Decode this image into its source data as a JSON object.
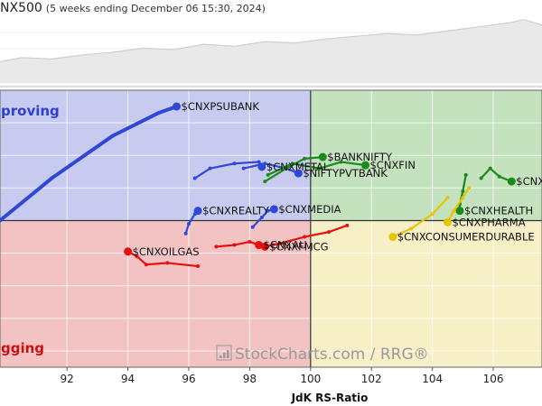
{
  "header": {
    "title": "NX500",
    "subtitle": "(5 weeks ending December 06 15:30, 2024)"
  },
  "watermark": "StockCharts.com / RRG®",
  "quadrants": {
    "improving": {
      "label": "proving",
      "color": "#c8cbf0",
      "text_color": "#2f3fcf"
    },
    "leading": {
      "label": "",
      "color": "#c3e2bd",
      "text_color": "#1f7a1f"
    },
    "lagging": {
      "label": "gging",
      "color": "#f3c3c3",
      "text_color": "#d01010"
    },
    "weakening": {
      "label": "",
      "color": "#f7efc6",
      "text_color": "#b89a00"
    }
  },
  "chart_data": {
    "type": "scatter",
    "title": "",
    "xlabel": "JdK RS-Ratio",
    "ylabel": "",
    "xlim": [
      89.8,
      107.6
    ],
    "ylim": [
      95.5,
      104.0
    ],
    "center": [
      100,
      100
    ],
    "x_ticks": [
      92,
      94,
      96,
      98,
      100,
      102,
      104,
      106
    ],
    "grid": true,
    "benchmark_line": [
      [
        89.8,
        0.32
      ],
      [
        90.5,
        0.38
      ],
      [
        91.5,
        0.36
      ],
      [
        92.5,
        0.42
      ],
      [
        93.5,
        0.46
      ],
      [
        94.5,
        0.52
      ],
      [
        95.5,
        0.5
      ],
      [
        96.5,
        0.58
      ],
      [
        97.5,
        0.55
      ],
      [
        98.5,
        0.62
      ],
      [
        99.5,
        0.6
      ],
      [
        100.5,
        0.66
      ],
      [
        101.5,
        0.7
      ],
      [
        102.5,
        0.74
      ],
      [
        103.5,
        0.72
      ],
      [
        104.5,
        0.78
      ],
      [
        105.5,
        0.84
      ],
      [
        106.5,
        0.9
      ],
      [
        107.0,
        0.95
      ],
      [
        107.6,
        0.87
      ]
    ],
    "series": [
      {
        "name": "$CNXPSUBANK",
        "color": "#2f49d6",
        "points": [
          [
            89.8,
            100.0
          ],
          [
            91.5,
            101.3
          ],
          [
            93.5,
            102.6
          ],
          [
            95.0,
            103.3
          ],
          [
            95.6,
            103.5
          ]
        ]
      },
      {
        "name": "$CNXMETAL",
        "color": "#2f49d6",
        "points": [
          [
            96.2,
            101.3
          ],
          [
            96.7,
            101.6
          ],
          [
            97.5,
            101.75
          ],
          [
            98.3,
            101.8
          ],
          [
            98.4,
            101.65
          ]
        ]
      },
      {
        "name": "$CNXREALTY",
        "color": "#2f49d6",
        "points": [
          [
            95.9,
            99.6
          ],
          [
            96.0,
            99.9
          ],
          [
            96.2,
            100.2
          ],
          [
            96.3,
            100.3
          ]
        ]
      },
      {
        "name": "$CNXMEDIA",
        "color": "#2f49d6",
        "points": [
          [
            98.1,
            99.8
          ],
          [
            98.4,
            100.1
          ],
          [
            98.6,
            100.3
          ],
          [
            98.8,
            100.35
          ]
        ]
      },
      {
        "name": "$NIFTYPVTBANK",
        "color": "#2f49d6",
        "points": [
          [
            97.8,
            101.6
          ],
          [
            98.5,
            101.75
          ],
          [
            99.2,
            101.6
          ],
          [
            99.6,
            101.45
          ]
        ]
      },
      {
        "name": "$BANKNIFTY",
        "color": "#1a8a1a",
        "points": [
          [
            98.5,
            101.2
          ],
          [
            99.2,
            101.6
          ],
          [
            99.8,
            101.9
          ],
          [
            100.4,
            101.95
          ]
        ]
      },
      {
        "name": "$CNXFIN",
        "color": "#1a8a1a",
        "points": [
          [
            98.6,
            101.4
          ],
          [
            99.4,
            101.75
          ],
          [
            100.3,
            101.6
          ],
          [
            101.0,
            101.8
          ],
          [
            101.8,
            101.7
          ]
        ]
      },
      {
        "name": "$CNX",
        "color": "#1a8a1a",
        "points": [
          [
            105.6,
            101.3
          ],
          [
            105.9,
            101.6
          ],
          [
            106.2,
            101.35
          ],
          [
            106.6,
            101.2
          ]
        ]
      },
      {
        "name": "$CNXHEALTH",
        "color": "#1a8a1a",
        "points": [
          [
            105.1,
            101.4
          ],
          [
            105.0,
            100.9
          ],
          [
            104.9,
            100.5
          ],
          [
            104.9,
            100.3
          ]
        ]
      },
      {
        "name": "$CNXPHARMA",
        "color": "#e8c400",
        "points": [
          [
            105.2,
            101.0
          ],
          [
            105.0,
            100.7
          ],
          [
            104.7,
            100.3
          ],
          [
            104.5,
            99.95
          ]
        ]
      },
      {
        "name": "$CNXCONSUMERDURABLE",
        "color": "#e8c400",
        "points": [
          [
            104.5,
            100.7
          ],
          [
            104.0,
            100.2
          ],
          [
            103.3,
            99.75
          ],
          [
            102.7,
            99.5
          ]
        ]
      },
      {
        "name": "$CNXAU",
        "color": "#e61010",
        "points": [
          [
            96.9,
            99.2
          ],
          [
            97.5,
            99.25
          ],
          [
            98.0,
            99.35
          ],
          [
            98.3,
            99.25
          ]
        ]
      },
      {
        "name": "$CNXFMCG",
        "color": "#e61010",
        "points": [
          [
            101.2,
            99.85
          ],
          [
            100.6,
            99.65
          ],
          [
            99.8,
            99.5
          ],
          [
            99.0,
            99.3
          ],
          [
            98.5,
            99.2
          ]
        ]
      },
      {
        "name": "$CNXOILGAS",
        "color": "#e61010",
        "points": [
          [
            96.3,
            98.6
          ],
          [
            95.3,
            98.7
          ],
          [
            94.6,
            98.65
          ],
          [
            94.3,
            98.9
          ],
          [
            94.0,
            99.05
          ]
        ]
      }
    ]
  }
}
